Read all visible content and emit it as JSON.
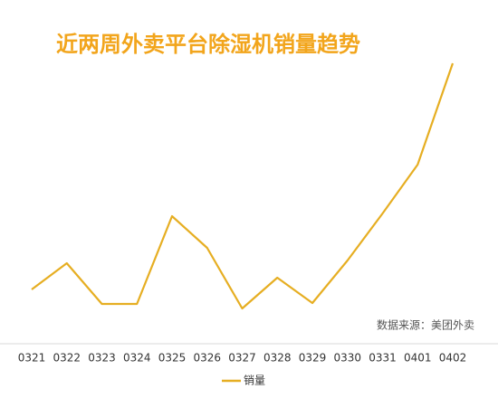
{
  "chart_data": {
    "type": "line",
    "title": "近两周外卖平台除湿机销量趋势",
    "source": "数据来源：美团外卖",
    "categories": [
      "0321",
      "0322",
      "0323",
      "0324",
      "0325",
      "0326",
      "0327",
      "0328",
      "0329",
      "0330",
      "0331",
      "0401",
      "0402"
    ],
    "series": [
      {
        "name": "销量",
        "color": "#e6ae22",
        "values": [
          60,
          89,
          44,
          44,
          141,
          106,
          39,
          73,
          45,
          92,
          144,
          198,
          310
        ]
      }
    ],
    "ylim": [
      0,
      320
    ],
    "grid": false,
    "legend": "bottom"
  }
}
